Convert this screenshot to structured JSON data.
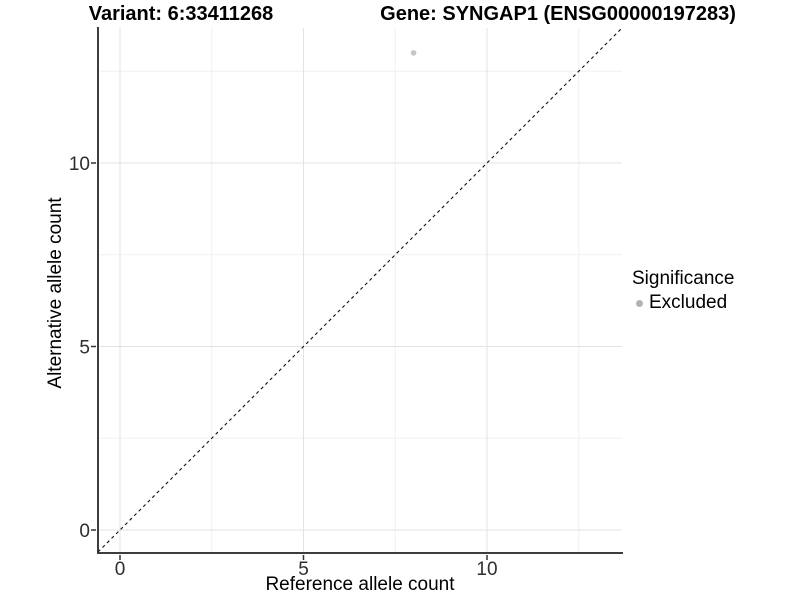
{
  "header": {
    "variant_title": "Variant: 6:33411268",
    "gene_title": "Gene: SYNGAP1 (ENSG00000197283)"
  },
  "chart_data": {
    "type": "scatter",
    "xlabel": "Reference allele count",
    "ylabel": "Alternative allele count",
    "xlim": [
      -0.65,
      13.68
    ],
    "ylim": [
      -0.65,
      13.68
    ],
    "x_major_ticks": [
      0,
      5,
      10
    ],
    "y_major_ticks": [
      0,
      5,
      10
    ],
    "x_minor_gridlines": [
      2.5,
      7.5,
      12.5
    ],
    "y_minor_gridlines": [
      2.5,
      7.5,
      12.5
    ],
    "grid": true,
    "legend_position": "right",
    "reference_line": {
      "type": "identity",
      "equation": "y = x",
      "style": "dashed",
      "color": "#111111"
    },
    "points": [
      {
        "x": 8,
        "y": 13,
        "series": "Excluded",
        "color": "#c6c6c6"
      }
    ]
  },
  "legend": {
    "title": "Significance",
    "items": [
      {
        "label": "Excluded",
        "color": "#b4b4b4"
      }
    ]
  },
  "colors": {
    "axis_line": "#3d3d3d",
    "tick_mark": "#333333",
    "major_gridline": "#e3e3e3",
    "minor_gridline": "#f0f0f0"
  }
}
